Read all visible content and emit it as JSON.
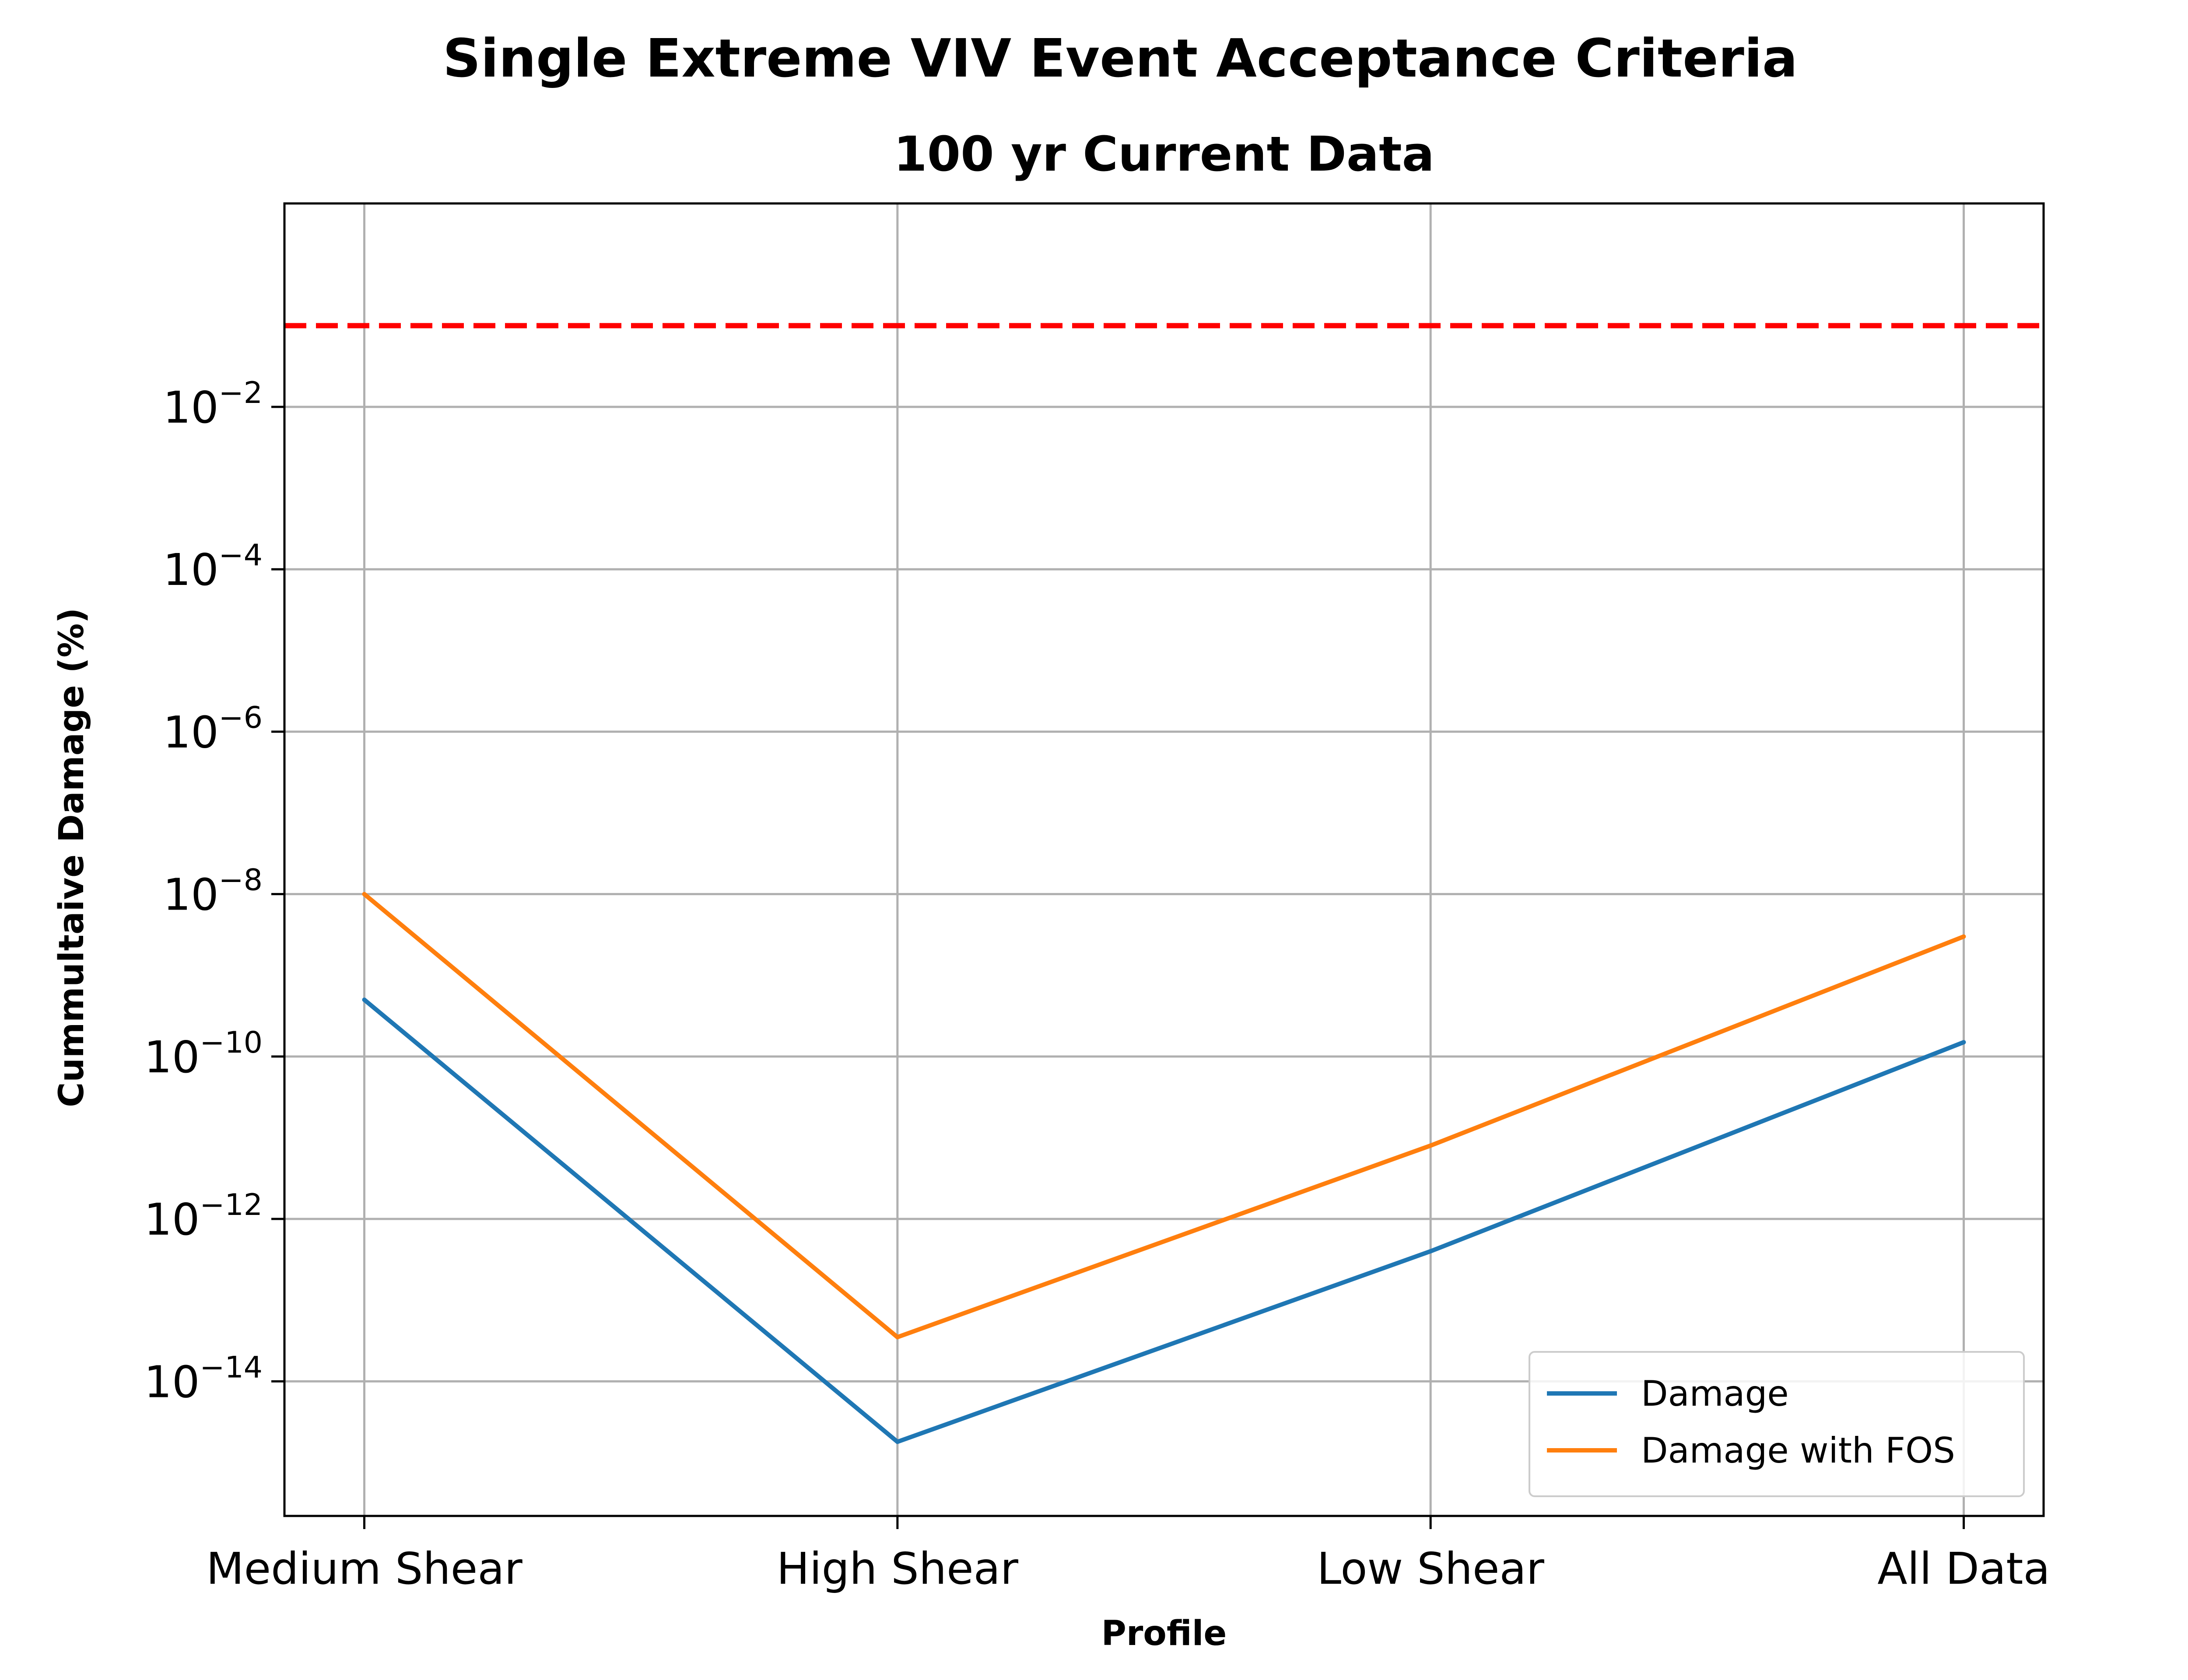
{
  "chart_data": {
    "type": "line",
    "title": "Single Extreme VIV Event Acceptance Criteria",
    "subtitle": "100 yr Current Data",
    "xlabel": "Profile",
    "ylabel": "Cummultaive Damage (%)",
    "categories": [
      "Medium Shear",
      "High Shear",
      "Low Shear",
      "All Data"
    ],
    "yscale": "log",
    "ylim": [
      2.2e-16,
      3.2
    ],
    "yticks": [
      {
        "value": 1e-14,
        "base": "10",
        "exp": "−14"
      },
      {
        "value": 1e-12,
        "base": "10",
        "exp": "−12"
      },
      {
        "value": 1e-10,
        "base": "10",
        "exp": "−10"
      },
      {
        "value": 1e-08,
        "base": "10",
        "exp": "−8"
      },
      {
        "value": 1e-06,
        "base": "10",
        "exp": "−6"
      },
      {
        "value": 0.0001,
        "base": "10",
        "exp": "−4"
      },
      {
        "value": 0.01,
        "base": "10",
        "exp": "−2"
      }
    ],
    "series": [
      {
        "name": "Damage",
        "color": "#1f77b4",
        "values": [
          5e-10,
          1.8e-15,
          4e-13,
          1.5e-10
        ]
      },
      {
        "name": "Damage with FOS",
        "color": "#ff7f0e",
        "values": [
          1e-08,
          3.5e-14,
          8e-12,
          3e-09
        ]
      }
    ],
    "reference_line": {
      "value": 0.1,
      "color": "#ff0000",
      "style": "dashed"
    },
    "grid": true,
    "legend_position": "lower-right"
  }
}
